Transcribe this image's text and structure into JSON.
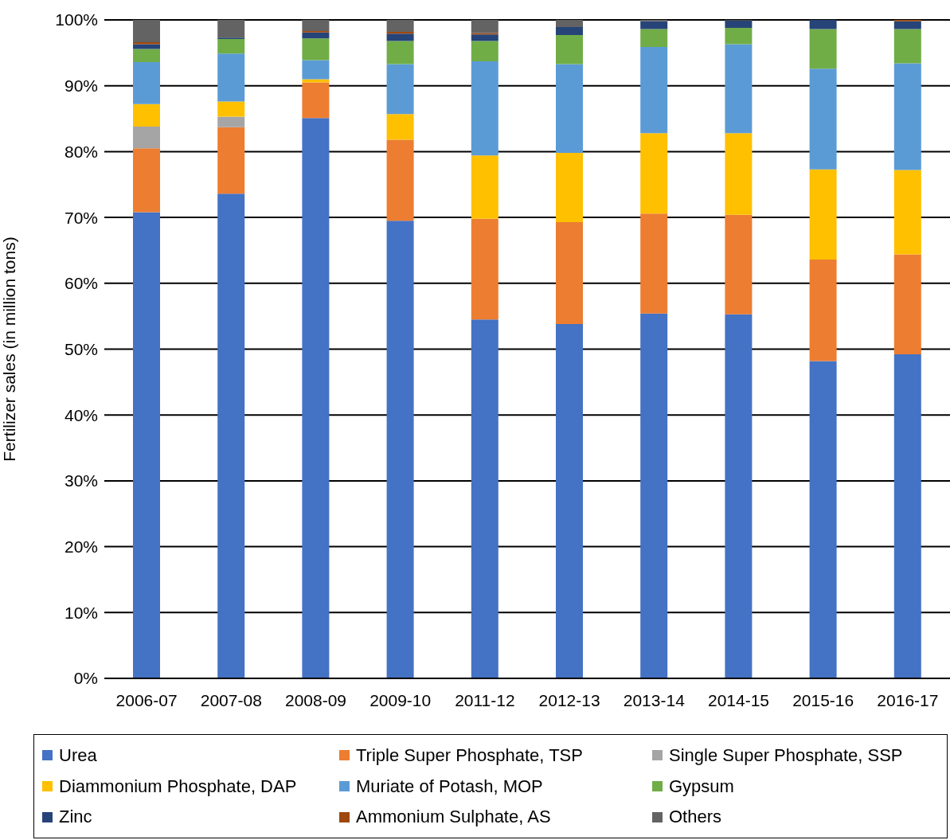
{
  "chart_data": {
    "type": "bar",
    "stacked": true,
    "ylabel": "Fertilizer sales (in million tons)",
    "categories": [
      "2006-07",
      "2007-08",
      "2008-09",
      "2009-10",
      "2011-12",
      "2012-13",
      "2013-14",
      "2014-15",
      "2015-16",
      "2016-17"
    ],
    "series": [
      {
        "name": "Urea",
        "color": "#4472c4",
        "values": [
          70.8,
          73.6,
          85.1,
          69.5,
          54.5,
          53.8,
          55.4,
          55.3,
          48.2,
          49.2
        ]
      },
      {
        "name": "Triple Super Phosphate, TSP",
        "color": "#ed7d31",
        "values": [
          9.7,
          10.1,
          5.4,
          12.3,
          15.3,
          15.5,
          15.2,
          15.1,
          15.4,
          15.2
        ]
      },
      {
        "name": "Single Super Phosphate, SSP",
        "color": "#a5a5a5",
        "values": [
          3.3,
          1.6,
          0,
          0,
          0,
          0,
          0,
          0,
          0,
          0
        ]
      },
      {
        "name": "Diammonium Phosphate, DAP",
        "color": "#ffc000",
        "values": [
          3.4,
          2.3,
          0.5,
          3.9,
          9.6,
          10.5,
          12.2,
          12.4,
          13.7,
          12.8
        ]
      },
      {
        "name": "Muriate of Potash, MOP",
        "color": "#5b9bd5",
        "values": [
          6.4,
          7.3,
          2.9,
          7.6,
          14.3,
          13.5,
          13.1,
          13.5,
          15.3,
          16.2
        ]
      },
      {
        "name": "Gypsum",
        "color": "#70ad47",
        "values": [
          2.0,
          2.2,
          3.3,
          3.5,
          3.1,
          4.4,
          2.7,
          2.5,
          6.0,
          5.2
        ]
      },
      {
        "name": "Zinc",
        "color": "#264478",
        "values": [
          0.7,
          0.2,
          0.9,
          1.1,
          1.0,
          1.2,
          1.2,
          1.1,
          1.4,
          1.2
        ]
      },
      {
        "name": "Ammonium Sulphate, AS",
        "color": "#9e480e",
        "values": [
          0.3,
          0,
          0.2,
          0.3,
          0.2,
          0,
          0,
          0,
          0,
          0.2
        ]
      },
      {
        "name": "Others",
        "color": "#636363",
        "values": [
          3.4,
          2.7,
          1.7,
          1.8,
          2.0,
          1.1,
          0.2,
          0.1,
          0,
          0
        ]
      }
    ],
    "ylim": [
      0,
      100
    ],
    "yticks": [
      {
        "value": 0,
        "label": "0%"
      },
      {
        "value": 10,
        "label": "10%"
      },
      {
        "value": 20,
        "label": "20%"
      },
      {
        "value": 30,
        "label": "30%"
      },
      {
        "value": 40,
        "label": "40%"
      },
      {
        "value": 50,
        "label": "50%"
      },
      {
        "value": 60,
        "label": "60%"
      },
      {
        "value": 70,
        "label": "70%"
      },
      {
        "value": 80,
        "label": "80%"
      },
      {
        "value": 90,
        "label": "90%"
      },
      {
        "value": 100,
        "label": "100%"
      }
    ],
    "grid": "y",
    "legend": "bottom"
  }
}
